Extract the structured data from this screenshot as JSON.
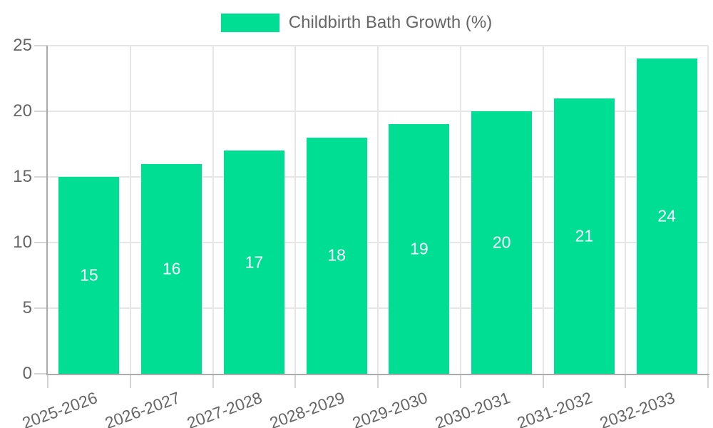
{
  "legend": {
    "label": "Childbirth Bath Growth (%)",
    "swatch_color": "#00de94"
  },
  "chart_data": {
    "type": "bar",
    "title": "Childbirth Bath Growth (%)",
    "series_name": "Childbirth Bath Growth (%)",
    "categories": [
      "2025-2026",
      "2026-2027",
      "2027-2028",
      "2028-2029",
      "2029-2030",
      "2030-2031",
      "2031-2032",
      "2032-2033"
    ],
    "values": [
      15,
      16,
      17,
      18,
      19,
      20,
      21,
      24
    ],
    "xlabel": "",
    "ylabel": "",
    "ylim": [
      0,
      25
    ],
    "yticks": [
      0,
      5,
      10,
      15,
      20,
      25
    ],
    "grid": true,
    "legend_position": "top",
    "bar_color": "#00de94",
    "value_label_color": "#ffffff",
    "axis_label_color": "#666666",
    "grid_color": "#e6e6e6",
    "tick_color": "#d4d4d4",
    "axis_line_color": "#ababab"
  }
}
